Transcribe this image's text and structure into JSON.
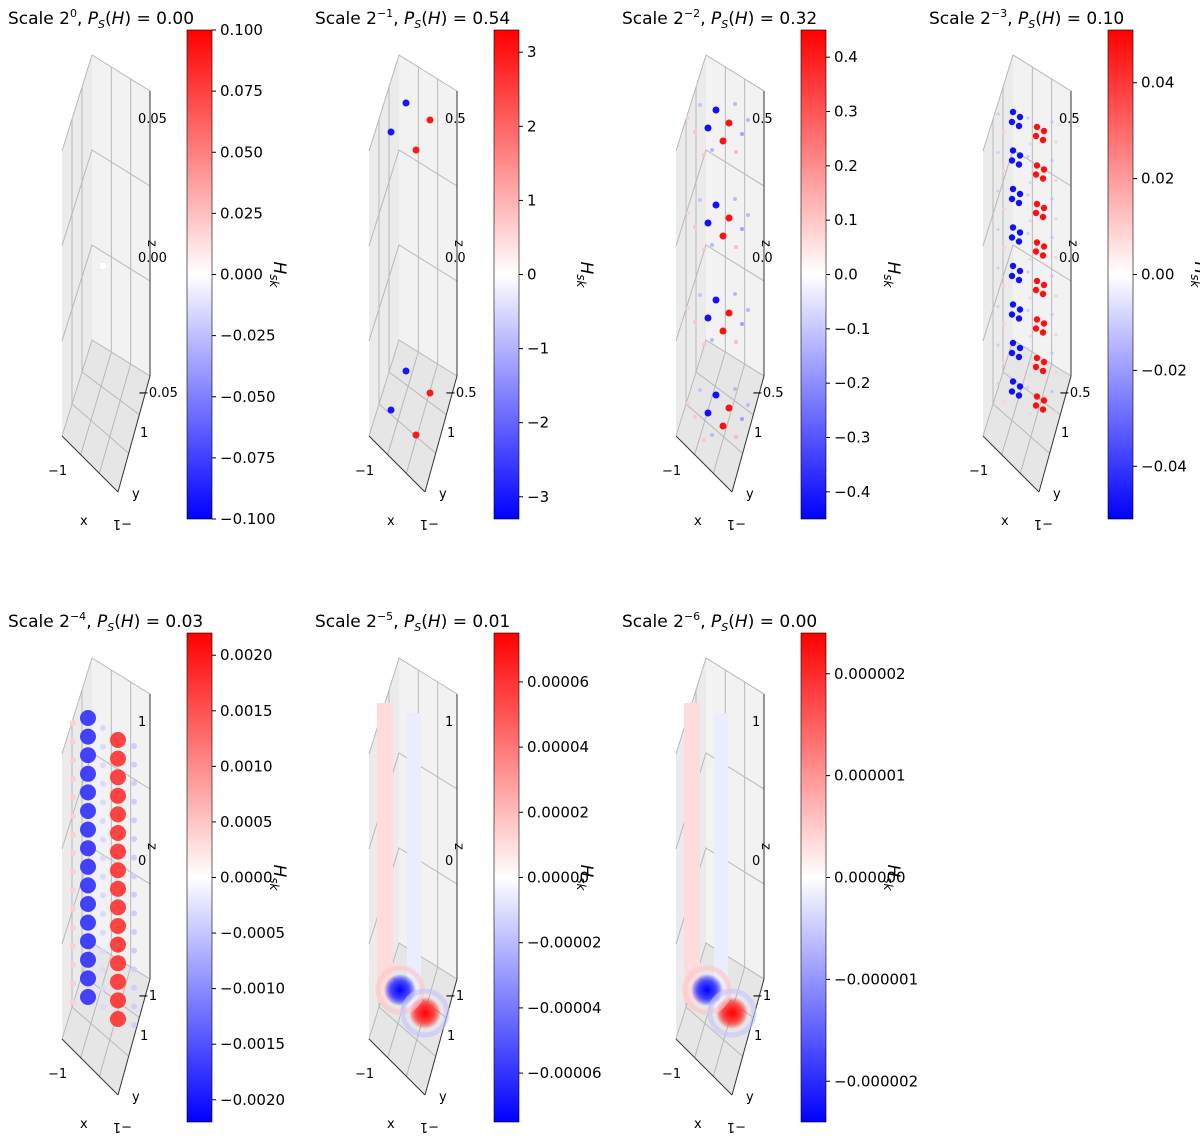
{
  "figure": {
    "colormap": {
      "low": "#0000ff",
      "mid": "#ffffff",
      "high": "#ff0000"
    },
    "colorbar_label": "H_sk"
  },
  "chart_data": [
    {
      "type": "scatter3d",
      "title_scale": "Scale 2",
      "title_exp": "0",
      "title_rest": ", P_S(H) = 0.00",
      "ps": 0.0,
      "axes": {
        "x_label": "x",
        "y_label": "y",
        "z_label": "z",
        "x_ticks": [
          "−1",
          "1"
        ],
        "y_ticks": [
          "−1",
          "1"
        ],
        "z_ticks": [
          "0.05",
          "0.00",
          "−0.05"
        ]
      },
      "colorbar": {
        "min": -0.1,
        "max": 0.1,
        "ticks": [
          "0.100",
          "0.075",
          "0.050",
          "0.025",
          "0.000",
          "−0.025",
          "−0.050",
          "−0.075",
          "−0.100"
        ]
      },
      "pattern": "single",
      "levels": 1,
      "value": 0
    },
    {
      "type": "scatter3d",
      "title_scale": "Scale 2",
      "title_exp": "−1",
      "title_rest": ", P_S(H) = 0.54",
      "ps": 0.54,
      "axes": {
        "x_label": "x",
        "y_label": "y",
        "z_label": "z",
        "x_ticks": [
          "−1",
          "1"
        ],
        "y_ticks": [
          "−1",
          "1"
        ],
        "z_ticks": [
          "0.5",
          "0.0",
          "−0.5"
        ]
      },
      "colorbar": {
        "min": -3.3,
        "max": 3.3,
        "ticks": [
          "3",
          "2",
          "1",
          "0",
          "−1",
          "−2",
          "−3"
        ]
      },
      "pattern": "pairs",
      "levels": 2,
      "value": 3.0
    },
    {
      "type": "scatter3d",
      "title_scale": "Scale 2",
      "title_exp": "−2",
      "title_rest": ", P_S(H) = 0.32",
      "ps": 0.32,
      "axes": {
        "x_label": "x",
        "y_label": "y",
        "z_label": "z",
        "x_ticks": [
          "−1",
          "1"
        ],
        "y_ticks": [
          "−1",
          "1"
        ],
        "z_ticks": [
          "0.5",
          "0.0",
          "−0.5"
        ]
      },
      "colorbar": {
        "min": -0.45,
        "max": 0.45,
        "ticks": [
          "0.4",
          "0.3",
          "0.2",
          "0.1",
          "0.0",
          "−0.1",
          "−0.2",
          "−0.3",
          "−0.4"
        ]
      },
      "pattern": "pairs",
      "levels": 4,
      "value": 0.42
    },
    {
      "type": "scatter3d",
      "title_scale": "Scale 2",
      "title_exp": "−3",
      "title_rest": ", P_S(H) = 0.10",
      "ps": 0.1,
      "axes": {
        "x_label": "x",
        "y_label": "y",
        "z_label": "z",
        "x_ticks": [
          "−1",
          "1"
        ],
        "y_ticks": [
          "−1",
          "1"
        ],
        "z_ticks": [
          "0.5",
          "0.0",
          "−0.5"
        ]
      },
      "colorbar": {
        "min": -0.051,
        "max": 0.051,
        "ticks": [
          "0.04",
          "0.02",
          "0.00",
          "−0.02",
          "−0.04"
        ]
      },
      "pattern": "clusters",
      "levels": 8,
      "value": 0.048
    },
    {
      "type": "scatter3d",
      "title_scale": "Scale 2",
      "title_exp": "−4",
      "title_rest": ", P_S(H) = 0.03",
      "ps": 0.03,
      "axes": {
        "x_label": "x",
        "y_label": "y",
        "z_label": "z",
        "x_ticks": [
          "−1",
          "1"
        ],
        "y_ticks": [
          "−1",
          "1"
        ],
        "z_ticks": [
          "1",
          "0",
          "−1"
        ]
      },
      "colorbar": {
        "min": -0.0022,
        "max": 0.0022,
        "ticks": [
          "0.0020",
          "0.0015",
          "0.0010",
          "0.0005",
          "0.0000",
          "−0.0005",
          "−0.0010",
          "−0.0015",
          "−0.0020"
        ]
      },
      "pattern": "columns",
      "levels": 16,
      "value": 0.0021
    },
    {
      "type": "scatter3d",
      "title_scale": "Scale 2",
      "title_exp": "−5",
      "title_rest": ", P_S(H) = 0.01",
      "ps": 0.01,
      "axes": {
        "x_label": "x",
        "y_label": "y",
        "z_label": "z",
        "x_ticks": [
          "−1",
          "1"
        ],
        "y_ticks": [
          "−1",
          "1"
        ],
        "z_ticks": [
          "1",
          "0",
          "−1"
        ]
      },
      "colorbar": {
        "min": -7.5e-05,
        "max": 7.5e-05,
        "ticks": [
          "0.00006",
          "0.00004",
          "0.00002",
          "0.00000",
          "−0.00002",
          "−0.00004",
          "−0.00006"
        ]
      },
      "pattern": "blobs",
      "levels": 1,
      "value": 7e-05
    },
    {
      "type": "scatter3d",
      "title_scale": "Scale 2",
      "title_exp": "−6",
      "title_rest": ", P_S(H) = 0.00",
      "ps": 0.0,
      "axes": {
        "x_label": "x",
        "y_label": "y",
        "z_label": "z",
        "x_ticks": [
          "−1",
          "1"
        ],
        "y_ticks": [
          "−1",
          "1"
        ],
        "z_ticks": [
          "1",
          "0",
          "−1"
        ]
      },
      "colorbar": {
        "min": -2.4e-06,
        "max": 2.4e-06,
        "ticks": [
          "0.000002",
          "0.000001",
          "0.000000",
          "−0.000001",
          "−0.000002"
        ]
      },
      "pattern": "blobs",
      "levels": 1,
      "value": 2.2e-06
    }
  ]
}
